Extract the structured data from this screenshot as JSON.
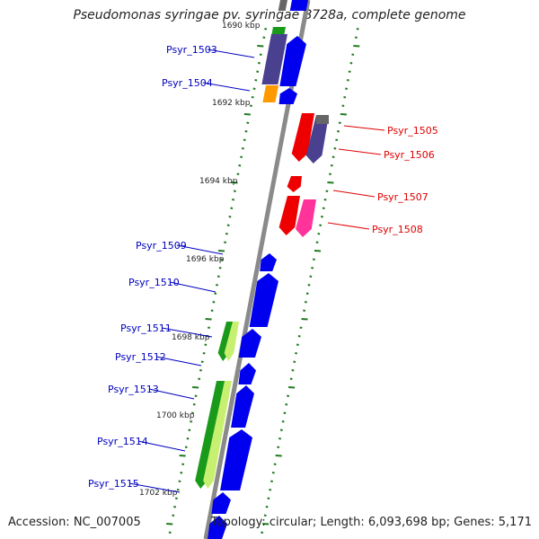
{
  "title": "Pseudomonas syringae pv. syringae B728a, complete genome",
  "footer": {
    "accession": "Accession: NC_007005",
    "topology": "Topology: circular; Length: 6,093,698 bp; Genes: 5,171"
  },
  "colors": {
    "backbone": "#8a8a8a",
    "tick": "#1f7a1f",
    "forward_label": "#0000c0",
    "reverse_label": "#e00000",
    "blue": "#0000ee",
    "navy": "#4a4090",
    "green": "#1a9a1a",
    "lime": "#c8f070",
    "orange": "#ff9900",
    "red": "#ee0000",
    "pink": "#ff3399",
    "gray": "#666666"
  },
  "position_labels": [
    "1690 kbp",
    "1692 kbp",
    "1694 kbp",
    "1696 kbp",
    "1698 kbp",
    "1700 kbp",
    "1702 kbp"
  ],
  "genes_forward": [
    "Psyr_1503",
    "Psyr_1504",
    "Psyr_1509",
    "Psyr_1510",
    "Psyr_1511",
    "Psyr_1512",
    "Psyr_1513",
    "Psyr_1514",
    "Psyr_1515"
  ],
  "genes_reverse": [
    "Psyr_1505",
    "Psyr_1506",
    "Psyr_1507",
    "Psyr_1508"
  ]
}
